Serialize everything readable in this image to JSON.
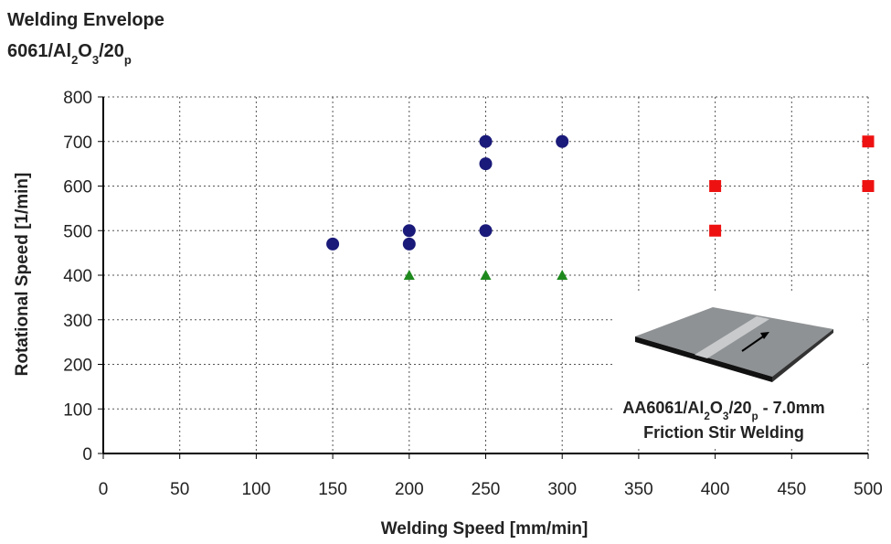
{
  "chart_data": {
    "type": "scatter",
    "title": "Welding Envelope",
    "subtitle_parts": [
      "6061/Al",
      "2",
      "O",
      "3",
      "/20",
      "p"
    ],
    "xlabel": "Welding Speed  [mm/min]",
    "ylabel": "Rotational Speed  [1/min]",
    "annotation_parts": [
      "AA6061/Al",
      "2",
      "O",
      "3",
      "/20",
      "p",
      " - 7.0mm"
    ],
    "annotation_line2": "Friction Stir Welding",
    "xlim": [
      0,
      500
    ],
    "xticks": [
      0,
      50,
      100,
      150,
      200,
      250,
      300,
      350,
      400,
      450,
      500
    ],
    "ylim": [
      0,
      800
    ],
    "yticks": [
      0,
      100,
      200,
      300,
      400,
      500,
      600,
      700,
      800
    ],
    "grid": true,
    "series": [
      {
        "color": "#1a1a7a",
        "marker": "circle",
        "x": [
          150,
          200,
          200,
          250,
          250,
          250,
          300
        ],
        "values": [
          470,
          500,
          470,
          700,
          650,
          500,
          700
        ]
      },
      {
        "color": "#1e8a1e",
        "marker": "triangle",
        "x": [
          200,
          250,
          300
        ],
        "values": [
          400,
          400,
          400
        ]
      },
      {
        "color": "#ee1111",
        "marker": "square",
        "x": [
          400,
          400,
          500,
          500
        ],
        "values": [
          600,
          500,
          700,
          600
        ]
      }
    ]
  }
}
